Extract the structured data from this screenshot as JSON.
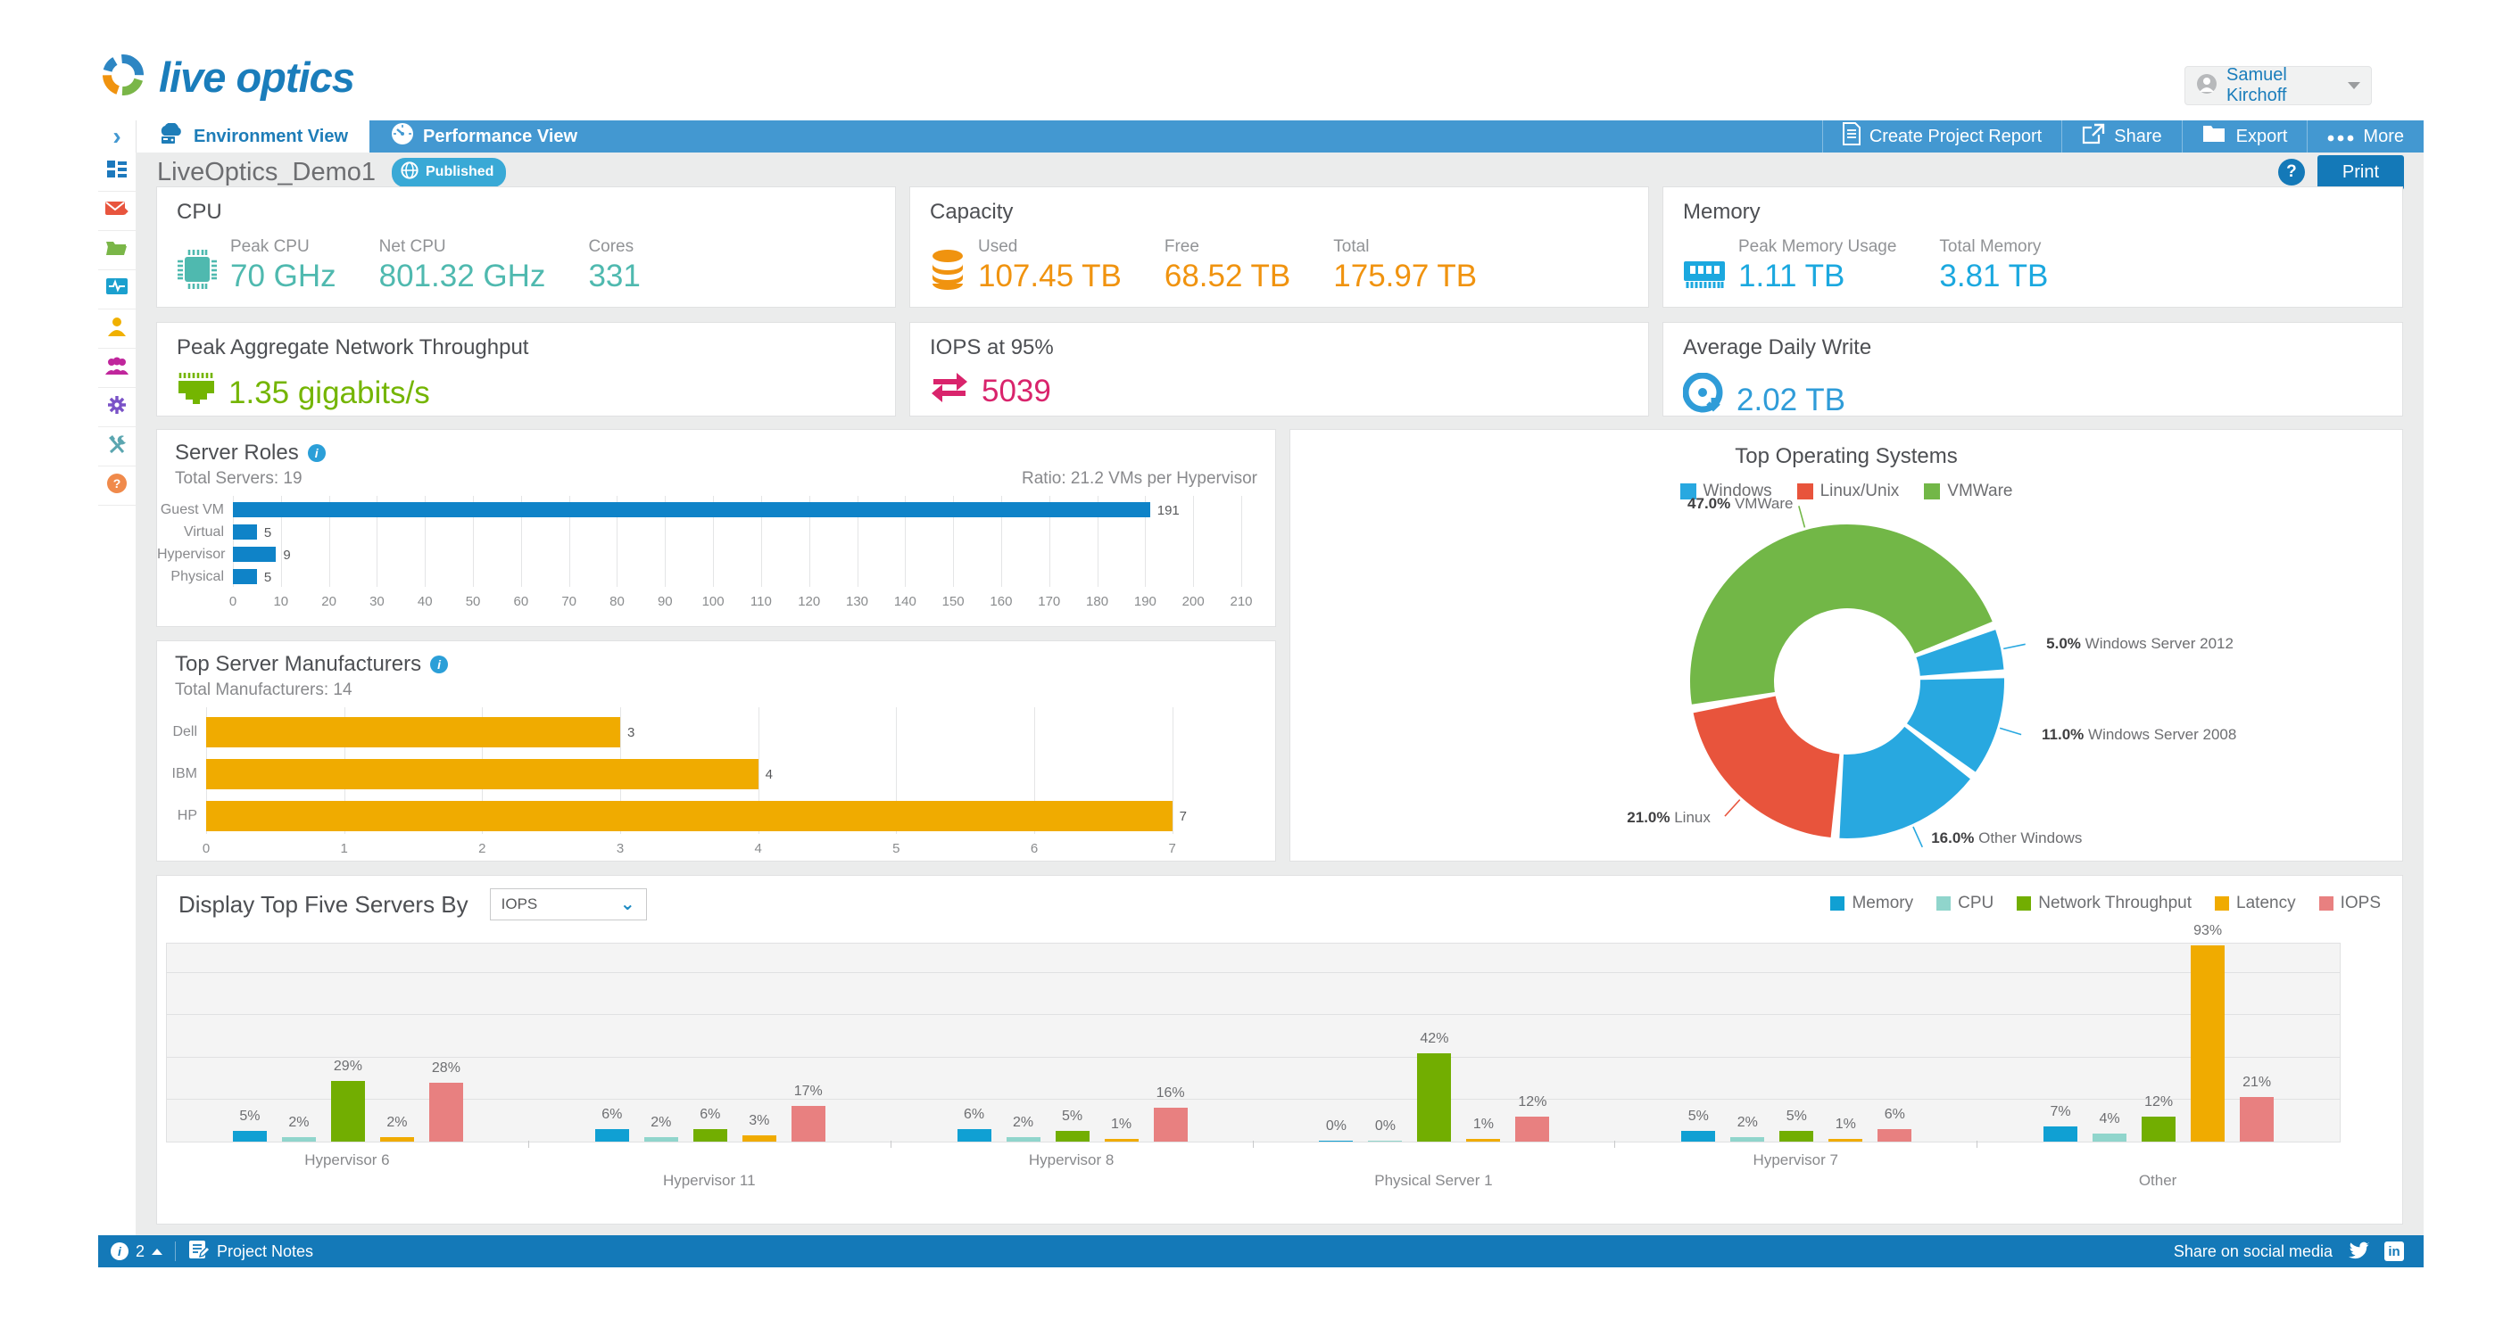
{
  "header": {
    "logo_text": "live optics",
    "user_name": "Samuel Kirchoff"
  },
  "tabbar": {
    "collapse_glyph": "›",
    "tabs": [
      {
        "label": "Environment View",
        "icon": "environment-icon",
        "active": true
      },
      {
        "label": "Performance View",
        "icon": "performance-icon",
        "active": false
      }
    ],
    "actions": [
      {
        "label": "Create Project Report",
        "icon": "report-icon"
      },
      {
        "label": "Share",
        "icon": "share-icon"
      },
      {
        "label": "Export",
        "icon": "export-icon"
      },
      {
        "label": "More",
        "icon": "more-icon"
      }
    ]
  },
  "titlebar": {
    "project_name": "LiveOptics_Demo1",
    "published_badge": "Published",
    "help_glyph": "?",
    "print_label": "Print"
  },
  "sidebar": {
    "items": [
      {
        "icon": "dashboard-icon",
        "color": "#1d79bd"
      },
      {
        "icon": "mail-icon",
        "color": "#e8553e"
      },
      {
        "icon": "folder-icon",
        "color": "#7ab648"
      },
      {
        "icon": "activity-icon",
        "color": "#1ba0ce"
      },
      {
        "icon": "user-icon",
        "color": "#f0b000"
      },
      {
        "icon": "team-icon",
        "color": "#c0269c"
      },
      {
        "icon": "settings-icon",
        "color": "#7a52c7"
      },
      {
        "icon": "tools-icon",
        "color": "#5ba6b0"
      },
      {
        "icon": "help-icon",
        "color": "#f08a4b"
      }
    ]
  },
  "metric_cards": {
    "cpu": {
      "title": "CPU",
      "color": "#4fb9af",
      "icon": "cpu-icon",
      "stats": [
        {
          "label": "Peak CPU",
          "value": "70 GHz"
        },
        {
          "label": "Net CPU",
          "value": "801.32 GHz"
        },
        {
          "label": "Cores",
          "value": "331"
        }
      ]
    },
    "capacity": {
      "title": "Capacity",
      "color": "#f0930f",
      "icon": "storage-icon",
      "stats": [
        {
          "label": "Used",
          "value": "107.45 TB"
        },
        {
          "label": "Free",
          "value": "68.52 TB"
        },
        {
          "label": "Total",
          "value": "175.97 TB"
        }
      ]
    },
    "memory": {
      "title": "Memory",
      "color": "#1ba8df",
      "icon": "memory-icon",
      "stats": [
        {
          "label": "Peak Memory Usage",
          "value": "1.11 TB"
        },
        {
          "label": "Total Memory",
          "value": "3.81 TB"
        }
      ]
    },
    "network": {
      "title": "Peak Aggregate Network Throughput",
      "color": "#74b501",
      "icon": "network-icon",
      "value": "1.35 gigabits/s"
    },
    "iops": {
      "title": "IOPS at 95%",
      "color": "#d9246c",
      "icon": "iops-icon",
      "value": "5039"
    },
    "daily_write": {
      "title": "Average Daily Write",
      "color": "#2f9cd8",
      "icon": "disc-icon",
      "value": "2.02 TB"
    }
  },
  "chart_data": [
    {
      "id": "server_roles",
      "type": "bar",
      "orientation": "horizontal",
      "title": "Server Roles",
      "subtitle_left": "Total Servers: 19",
      "subtitle_right": "Ratio: 21.2 VMs per Hypervisor",
      "categories": [
        "Guest VM",
        "Virtual",
        "Hypervisor",
        "Physical"
      ],
      "values": [
        191,
        5,
        9,
        5
      ],
      "xlim": [
        0,
        210
      ],
      "xtick_step": 10,
      "grid": true,
      "bar_color": "#0f83c8"
    },
    {
      "id": "manufacturers",
      "type": "bar",
      "orientation": "horizontal",
      "title": "Top Server Manufacturers",
      "subtitle_left": "Total Manufacturers: 14",
      "categories": [
        "Dell",
        "IBM",
        "HP"
      ],
      "values": [
        3,
        4,
        7
      ],
      "xlim": [
        0,
        7.5
      ],
      "xtick_step": 1,
      "xtick_max": 7,
      "grid": true,
      "bar_color": "#f0ab00"
    },
    {
      "id": "top_os",
      "type": "pie",
      "donut": true,
      "title": "Top Operating Systems",
      "legend": [
        {
          "label": "Windows",
          "color": "#28a8e0"
        },
        {
          "label": "Linux/Unix",
          "color": "#e8543c"
        },
        {
          "label": "VMWare",
          "color": "#72b747"
        }
      ],
      "slices": [
        {
          "label": "VMWare",
          "pct": 47.0,
          "color": "#72b747"
        },
        {
          "label": "Windows Server 2012",
          "pct": 5.0,
          "color": "#28a8e0"
        },
        {
          "label": "Windows Server 2008",
          "pct": 11.0,
          "color": "#28a8e0"
        },
        {
          "label": "Other Windows",
          "pct": 16.0,
          "color": "#28a8e0"
        },
        {
          "label": "Linux",
          "pct": 21.0,
          "color": "#e8543c"
        }
      ],
      "start_angle_deg": -100
    },
    {
      "id": "top5",
      "type": "bar",
      "grouped": true,
      "title": "Display Top Five Servers By",
      "selector_value": "IOPS",
      "categories": [
        "Hypervisor 6",
        "Hypervisor 11",
        "Hypervisor 8",
        "Physical Server 1",
        "Hypervisor 7",
        "Other"
      ],
      "series": [
        {
          "name": "Memory",
          "color": "#10a0d3",
          "values": [
            5,
            6,
            6,
            0,
            5,
            7
          ]
        },
        {
          "name": "CPU",
          "color": "#90d5cc",
          "values": [
            2,
            2,
            2,
            0,
            2,
            4
          ]
        },
        {
          "name": "Network Throughput",
          "color": "#72ae01",
          "values": [
            29,
            6,
            5,
            42,
            5,
            12
          ]
        },
        {
          "name": "Latency",
          "color": "#f0ab00",
          "values": [
            2,
            3,
            1,
            1,
            1,
            93
          ]
        },
        {
          "name": "IOPS",
          "color": "#e88080",
          "values": [
            28,
            17,
            16,
            12,
            6,
            21
          ]
        }
      ],
      "unit": "%",
      "ylim": [
        0,
        94
      ],
      "grid_step": 20,
      "grid_max": 80,
      "legend_position": "top-right"
    }
  ],
  "footer": {
    "info_count": "2",
    "project_notes_label": "Project Notes",
    "share_label": "Share on social media"
  }
}
